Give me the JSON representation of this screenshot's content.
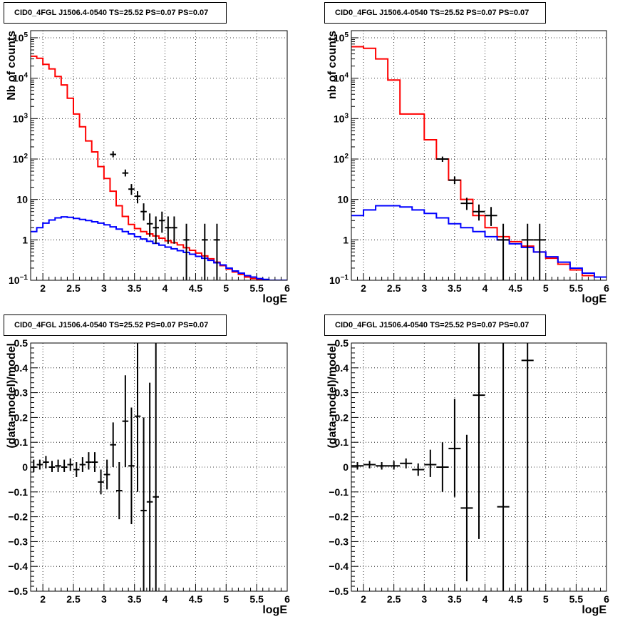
{
  "chart_data": [
    {
      "type": "histogram",
      "title": "CID0_4FGL J1506.4-0540 TS=25.52 PS=0.07 PS=0.07",
      "xlabel": "logE",
      "ylabel": "Nb of counts",
      "xlim": [
        1.8,
        6.0
      ],
      "ylim": [
        0.1,
        150000
      ],
      "yscale": "log",
      "xticks": [
        "2",
        "2.5",
        "3",
        "3.5",
        "4",
        "4.5",
        "5",
        "5.5",
        "6"
      ],
      "yticks": [
        "10^-1",
        "1",
        "10",
        "10^2",
        "10^3",
        "10^4",
        "10^5"
      ],
      "grid": true,
      "series": [
        {
          "color": "#ff0000",
          "kind": "step",
          "edges": [
            1.8,
            1.9,
            2.0,
            2.1,
            2.2,
            2.3,
            2.4,
            2.5,
            2.6,
            2.7,
            2.8,
            2.9,
            3.0,
            3.1,
            3.2,
            3.3,
            3.4,
            3.5,
            3.6,
            3.7,
            3.8,
            3.9,
            4.0,
            4.1,
            4.2,
            4.3,
            4.4,
            4.5,
            4.6,
            4.7,
            4.8,
            4.9,
            5.0,
            5.1,
            5.2,
            5.3,
            5.4,
            5.5,
            5.6,
            5.7,
            5.8,
            5.9,
            6.0
          ],
          "values": [
            35000,
            31000,
            22000,
            17000,
            11000,
            6800,
            3200,
            1300,
            630,
            280,
            150,
            65,
            33,
            16,
            7,
            3.8,
            2.4,
            1.9,
            1.6,
            1.4,
            1.25,
            1.1,
            0.95,
            0.85,
            0.75,
            0.64,
            0.55,
            0.47,
            0.4,
            0.34,
            0.28,
            0.23,
            0.19,
            0.16,
            0.14,
            0.12,
            0.11,
            0.105,
            0.1,
            0.1,
            0.1,
            0.1
          ]
        },
        {
          "color": "#0000ff",
          "kind": "step",
          "edges": [
            1.8,
            1.9,
            2.0,
            2.1,
            2.2,
            2.3,
            2.4,
            2.5,
            2.6,
            2.7,
            2.8,
            2.9,
            3.0,
            3.1,
            3.2,
            3.3,
            3.4,
            3.5,
            3.6,
            3.7,
            3.8,
            3.9,
            4.0,
            4.1,
            4.2,
            4.3,
            4.4,
            4.5,
            4.6,
            4.7,
            4.8,
            4.9,
            5.0,
            5.1,
            5.2,
            5.3,
            5.4,
            5.5,
            5.6,
            5.7,
            5.8,
            5.9,
            6.0
          ],
          "values": [
            1.6,
            2.0,
            2.6,
            3.1,
            3.5,
            3.7,
            3.6,
            3.4,
            3.2,
            3.0,
            2.8,
            2.6,
            2.35,
            2.1,
            1.85,
            1.6,
            1.4,
            1.2,
            1.05,
            0.92,
            0.82,
            0.74,
            0.66,
            0.6,
            0.54,
            0.49,
            0.44,
            0.39,
            0.35,
            0.31,
            0.27,
            0.24,
            0.2,
            0.17,
            0.15,
            0.13,
            0.12,
            0.11,
            0.105,
            0.1,
            0.1,
            0.1
          ]
        },
        {
          "color": "#000000",
          "kind": "errorbar",
          "points": [
            {
              "x": 3.15,
              "y": 130,
              "hw": 0.05,
              "lo": 110,
              "hi": 155
            },
            {
              "x": 3.35,
              "y": 45,
              "hw": 0.05,
              "lo": 37,
              "hi": 55
            },
            {
              "x": 3.45,
              "y": 18,
              "hw": 0.05,
              "lo": 13,
              "hi": 24
            },
            {
              "x": 3.55,
              "y": 12,
              "hw": 0.05,
              "lo": 8,
              "hi": 16
            },
            {
              "x": 3.65,
              "y": 5,
              "hw": 0.05,
              "lo": 3,
              "hi": 8
            },
            {
              "x": 3.75,
              "y": 2.5,
              "hw": 0.05,
              "lo": 1.2,
              "hi": 4.5
            },
            {
              "x": 3.85,
              "y": 2,
              "hw": 0.05,
              "lo": 0.8,
              "hi": 3.8
            },
            {
              "x": 3.95,
              "y": 3,
              "hw": 0.05,
              "lo": 1.5,
              "hi": 5
            },
            {
              "x": 4.05,
              "y": 2,
              "hw": 0.05,
              "lo": 0.8,
              "hi": 3.8
            },
            {
              "x": 4.15,
              "y": 2,
              "hw": 0.05,
              "lo": 0.8,
              "hi": 3.8
            },
            {
              "x": 4.35,
              "y": 1,
              "hw": 0.05,
              "lo": 0.1,
              "hi": 2.5
            },
            {
              "x": 4.65,
              "y": 1,
              "hw": 0.05,
              "lo": 0.1,
              "hi": 2.5
            },
            {
              "x": 4.85,
              "y": 1,
              "hw": 0.05,
              "lo": 0.1,
              "hi": 2.5
            }
          ]
        }
      ]
    },
    {
      "type": "histogram",
      "title": "CID0_4FGL J1506.4-0540 TS=25.52 PS=0.07 PS=0.07",
      "xlabel": "logE",
      "ylabel": "nb of counts",
      "xlim": [
        1.8,
        6.0
      ],
      "ylim": [
        0.1,
        150000
      ],
      "yscale": "log",
      "xticks": [
        "2",
        "2.5",
        "3",
        "3.5",
        "4",
        "4.5",
        "5",
        "5.5",
        "6"
      ],
      "yticks": [
        "10^-1",
        "1",
        "10",
        "10^2",
        "10^3",
        "10^4",
        "10^5"
      ],
      "grid": true,
      "series": [
        {
          "color": "#ff0000",
          "kind": "step",
          "edges": [
            1.8,
            2.0,
            2.2,
            2.4,
            2.6,
            2.8,
            3.0,
            3.2,
            3.4,
            3.6,
            3.8,
            4.0,
            4.2,
            4.4,
            4.6,
            4.8,
            5.0,
            5.2,
            5.4,
            5.6,
            5.8,
            6.0
          ],
          "values": [
            60000,
            55000,
            30000,
            9000,
            1300,
            1300,
            300,
            100,
            30,
            10,
            4,
            2,
            1.2,
            0.9,
            0.7,
            0.5,
            0.35,
            0.25,
            0.18,
            0.13,
            0.12
          ]
        },
        {
          "color": "#0000ff",
          "kind": "step",
          "edges": [
            1.8,
            2.0,
            2.2,
            2.4,
            2.6,
            2.8,
            3.0,
            3.2,
            3.4,
            3.6,
            3.8,
            4.0,
            4.2,
            4.4,
            4.6,
            4.8,
            5.0,
            5.2,
            5.4,
            5.6,
            5.8,
            6.0
          ],
          "values": [
            4,
            5.5,
            7,
            7,
            6.5,
            5.5,
            4.5,
            3.5,
            2.5,
            2.0,
            1.6,
            1.2,
            1.0,
            0.8,
            0.65,
            0.5,
            0.38,
            0.28,
            0.2,
            0.15,
            0.12
          ]
        },
        {
          "color": "#000000",
          "kind": "errorbar",
          "points": [
            {
              "x": 3.3,
              "y": 100,
              "hw": 0.1,
              "lo": 85,
              "hi": 115
            },
            {
              "x": 3.5,
              "y": 30,
              "hw": 0.1,
              "lo": 24,
              "hi": 37
            },
            {
              "x": 3.7,
              "y": 8,
              "hw": 0.1,
              "lo": 5.5,
              "hi": 11
            },
            {
              "x": 3.9,
              "y": 5,
              "hw": 0.1,
              "lo": 3,
              "hi": 7.5
            },
            {
              "x": 4.1,
              "y": 4,
              "hw": 0.1,
              "lo": 2.2,
              "hi": 6.5
            },
            {
              "x": 4.3,
              "y": 1,
              "hw": 0.1,
              "lo": 0.1,
              "hi": 2.5
            },
            {
              "x": 4.7,
              "y": 1,
              "hw": 0.1,
              "lo": 0.1,
              "hi": 2.5
            },
            {
              "x": 4.9,
              "y": 1,
              "hw": 0.1,
              "lo": 0.1,
              "hi": 2.5
            }
          ]
        }
      ]
    },
    {
      "type": "scatter",
      "title": "CID0_4FGL J1506.4-0540 TS=25.52 PS=0.07 PS=0.07",
      "xlabel": "logE",
      "ylabel": "(data-model)/model",
      "xlim": [
        1.8,
        6.0
      ],
      "ylim": [
        -0.5,
        0.5
      ],
      "yscale": "linear",
      "xticks": [
        "2",
        "2.5",
        "3",
        "3.5",
        "4",
        "4.5",
        "5",
        "5.5",
        "6"
      ],
      "yticks": [
        "-0.5",
        "-0.4",
        "-0.3",
        "-0.2",
        "-0.1",
        "0",
        "0.1",
        "0.2",
        "0.3",
        "0.4",
        "0.5"
      ],
      "grid": true,
      "series": [
        {
          "color": "#000000",
          "kind": "errorbar",
          "points": [
            {
              "x": 1.85,
              "y": 0.0,
              "hw": 0.05,
              "lo": -0.02,
              "hi": 0.03
            },
            {
              "x": 1.95,
              "y": 0.01,
              "hw": 0.05,
              "lo": -0.01,
              "hi": 0.03
            },
            {
              "x": 2.05,
              "y": 0.02,
              "hw": 0.05,
              "lo": -0.005,
              "hi": 0.045
            },
            {
              "x": 2.15,
              "y": 0.0,
              "hw": 0.05,
              "lo": -0.02,
              "hi": 0.025
            },
            {
              "x": 2.25,
              "y": 0.005,
              "hw": 0.05,
              "lo": -0.02,
              "hi": 0.03
            },
            {
              "x": 2.35,
              "y": 0.0,
              "hw": 0.05,
              "lo": -0.02,
              "hi": 0.03
            },
            {
              "x": 2.45,
              "y": 0.01,
              "hw": 0.05,
              "lo": -0.015,
              "hi": 0.035
            },
            {
              "x": 2.55,
              "y": -0.01,
              "hw": 0.05,
              "lo": -0.04,
              "hi": 0.02
            },
            {
              "x": 2.65,
              "y": 0.01,
              "hw": 0.05,
              "lo": -0.02,
              "hi": 0.04
            },
            {
              "x": 2.75,
              "y": 0.02,
              "hw": 0.05,
              "lo": -0.01,
              "hi": 0.06
            },
            {
              "x": 2.85,
              "y": 0.02,
              "hw": 0.05,
              "lo": -0.02,
              "hi": 0.06
            },
            {
              "x": 2.95,
              "y": -0.06,
              "hw": 0.05,
              "lo": -0.11,
              "hi": -0.01
            },
            {
              "x": 3.05,
              "y": -0.03,
              "hw": 0.05,
              "lo": -0.09,
              "hi": 0.03
            },
            {
              "x": 3.15,
              "y": 0.09,
              "hw": 0.05,
              "lo": 0.0,
              "hi": 0.18
            },
            {
              "x": 3.25,
              "y": -0.095,
              "hw": 0.05,
              "lo": -0.21,
              "hi": 0.02
            },
            {
              "x": 3.35,
              "y": 0.185,
              "hw": 0.05,
              "lo": 0.0,
              "hi": 0.37
            },
            {
              "x": 3.45,
              "y": 0.005,
              "hw": 0.05,
              "lo": -0.23,
              "hi": 0.24
            },
            {
              "x": 3.55,
              "y": 0.205,
              "hw": 0.05,
              "lo": -0.1,
              "hi": 0.5
            },
            {
              "x": 3.65,
              "y": -0.175,
              "hw": 0.05,
              "lo": -0.5,
              "hi": 0.2
            },
            {
              "x": 3.75,
              "y": -0.14,
              "hw": 0.05,
              "lo": -0.5,
              "hi": 0.34
            },
            {
              "x": 3.85,
              "y": -0.12,
              "hw": 0.05,
              "lo": -0.5,
              "hi": 0.5
            }
          ]
        }
      ]
    },
    {
      "type": "scatter",
      "title": "CID0_4FGL J1506.4-0540 TS=25.52 PS=0.07 PS=0.07",
      "xlabel": "logE",
      "ylabel": "(data-model)/model",
      "xlim": [
        1.8,
        6.0
      ],
      "ylim": [
        -0.5,
        0.5
      ],
      "yscale": "linear",
      "xticks": [
        "2",
        "2.5",
        "3",
        "3.5",
        "4",
        "4.5",
        "5",
        "5.5",
        "6"
      ],
      "yticks": [
        "-0.5",
        "-0.4",
        "-0.3",
        "-0.2",
        "-0.1",
        "0",
        "0.1",
        "0.2",
        "0.3",
        "0.4",
        "0.5"
      ],
      "grid": true,
      "series": [
        {
          "color": "#000000",
          "kind": "errorbar",
          "points": [
            {
              "x": 1.9,
              "y": 0.005,
              "hw": 0.1,
              "lo": -0.01,
              "hi": 0.02
            },
            {
              "x": 2.1,
              "y": 0.01,
              "hw": 0.1,
              "lo": -0.005,
              "hi": 0.025
            },
            {
              "x": 2.3,
              "y": 0.005,
              "hw": 0.1,
              "lo": -0.01,
              "hi": 0.02
            },
            {
              "x": 2.5,
              "y": 0.005,
              "hw": 0.1,
              "lo": -0.01,
              "hi": 0.025
            },
            {
              "x": 2.7,
              "y": 0.015,
              "hw": 0.1,
              "lo": -0.005,
              "hi": 0.035
            },
            {
              "x": 2.9,
              "y": -0.01,
              "hw": 0.1,
              "lo": -0.035,
              "hi": 0.015
            },
            {
              "x": 3.1,
              "y": 0.01,
              "hw": 0.1,
              "lo": -0.04,
              "hi": 0.07
            },
            {
              "x": 3.3,
              "y": 0.0,
              "hw": 0.1,
              "lo": -0.1,
              "hi": 0.1
            },
            {
              "x": 3.5,
              "y": 0.075,
              "hw": 0.1,
              "lo": -0.12,
              "hi": 0.275
            },
            {
              "x": 3.7,
              "y": -0.165,
              "hw": 0.1,
              "lo": -0.46,
              "hi": 0.13
            },
            {
              "x": 3.9,
              "y": 0.29,
              "hw": 0.1,
              "lo": -0.29,
              "hi": 0.5
            },
            {
              "x": 4.3,
              "y": -0.16,
              "hw": 0.1,
              "lo": -0.5,
              "hi": 0.5
            },
            {
              "x": 4.7,
              "y": 0.43,
              "hw": 0.1,
              "lo": -0.5,
              "hi": 0.5
            }
          ]
        }
      ]
    }
  ]
}
